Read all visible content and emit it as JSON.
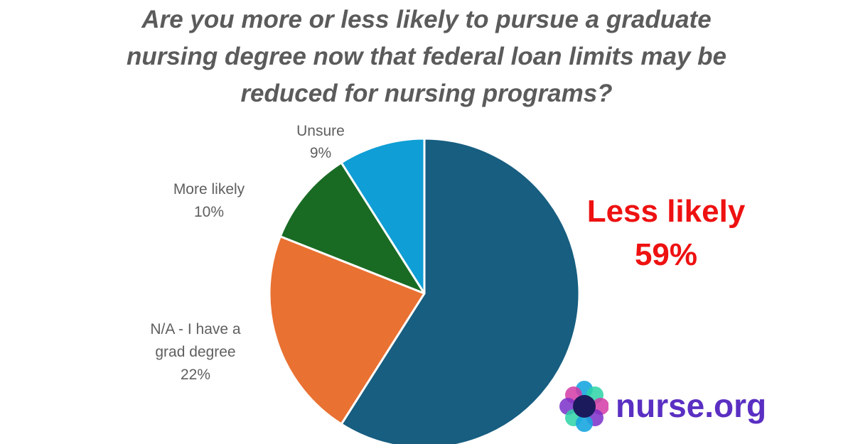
{
  "title_lines": [
    "Are you more or less likely to pursue a graduate",
    "nursing degree now that federal loan limits may be",
    "reduced for nursing programs?"
  ],
  "chart_data": {
    "type": "pie",
    "title": "Are you more or less likely to pursue a graduate nursing degree now that federal loan limits may be reduced for nursing programs?",
    "slices": [
      {
        "label": [
          "Less likely"
        ],
        "pct_label": "59%",
        "value": 59,
        "color": "#175e80",
        "highlight_color": "#ee1111"
      },
      {
        "label": [
          "N/A - I have a",
          "grad degree"
        ],
        "pct_label": "22%",
        "value": 22,
        "color": "#e97132"
      },
      {
        "label": [
          "More likely"
        ],
        "pct_label": "10%",
        "value": 10,
        "color": "#196b24"
      },
      {
        "label": [
          "Unsure"
        ],
        "pct_label": "9%",
        "value": 9,
        "color": "#0f9ed5"
      }
    ],
    "start_angle_deg": 0,
    "direction": "clockwise"
  },
  "brand": {
    "name": "nurse.org",
    "logo_icon": "nurse-org-logo-icon"
  }
}
